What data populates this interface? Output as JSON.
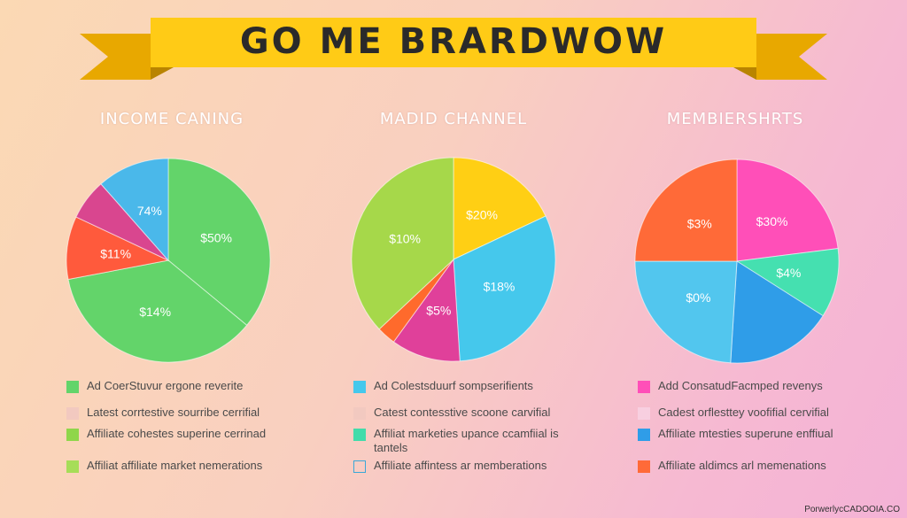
{
  "banner": {
    "title": "GO ME BRARDWOW"
  },
  "chart_data": [
    {
      "type": "pie",
      "title": "INCOME CANING",
      "slices": [
        {
          "label": "$50%",
          "value": 36,
          "color": "#63d46a"
        },
        {
          "label": "$14%",
          "value": 36,
          "color": "#63d46a"
        },
        {
          "label": "$11%",
          "value": 10,
          "color": "#ff5a3c"
        },
        {
          "label": "",
          "value": 6.5,
          "color": "#d9468f"
        },
        {
          "label": "74%",
          "value": 11.5,
          "color": "#4ab8ea"
        }
      ],
      "legend": [
        {
          "text": "Ad CoerStuvur ergone reverite",
          "color": "#63d46a",
          "style": "fill"
        },
        {
          "text": "Latest corrtestive sourribe cerrifial",
          "color": "#f2c9c0",
          "style": "fill"
        },
        {
          "text": "Affiliate cohestes superine cerrinad",
          "color": "#8fd64a",
          "style": "fill"
        },
        {
          "text": "Affiliat affiliate market nemerations",
          "color": "#a6dd58",
          "style": "fill"
        }
      ]
    },
    {
      "type": "pie",
      "title": "MADID CHANNEL",
      "slices": [
        {
          "label": "$20%",
          "value": 18,
          "color": "#ffcf14"
        },
        {
          "label": "$18%",
          "value": 31,
          "color": "#45c8ec"
        },
        {
          "label": "$5%",
          "value": 11,
          "color": "#e0409a"
        },
        {
          "label": "",
          "value": 3,
          "color": "#ff6a2c"
        },
        {
          "label": "$10%",
          "value": 37,
          "color": "#a6d84a"
        }
      ],
      "legend": [
        {
          "text": "Ad Colestsduurf sompserifients",
          "color": "#45c8ec",
          "style": "fill"
        },
        {
          "text": "Catest contesstive scoone carvifial",
          "color": "#f2c9c0",
          "style": "fill"
        },
        {
          "text": "Affiliat marketies upance ccamfiial is tantels",
          "color": "#42dcaa",
          "style": "fill"
        },
        {
          "text": "Affiliate affintess ar memberations",
          "color": "#3aa8d8",
          "style": "outline"
        }
      ]
    },
    {
      "type": "pie",
      "title": "MEMBIERSHRTS",
      "slices": [
        {
          "label": "$30%",
          "value": 23,
          "color": "#ff4fb8"
        },
        {
          "label": "$4%",
          "value": 11,
          "color": "#45e0b0"
        },
        {
          "label": "",
          "value": 17,
          "color": "#2f9de8"
        },
        {
          "label": "$0%",
          "value": 24,
          "color": "#52c6ee"
        },
        {
          "label": "$3%",
          "value": 25,
          "color": "#ff6a38"
        }
      ],
      "legend": [
        {
          "text": "Add ConsatudFacmped revenys",
          "color": "#ff4fb8",
          "style": "fill"
        },
        {
          "text": "Cadest orflesttey voofifial cervifial",
          "color": "#f8cfe0",
          "style": "fill"
        },
        {
          "text": "Affiliate mtesties superune enffiual",
          "color": "#2f9de8",
          "style": "fill"
        },
        {
          "text": "Affiliate aldimcs arl memenations",
          "color": "#ff6a38",
          "style": "fill"
        }
      ]
    }
  ],
  "footer": {
    "text": "PorwerlycCADOOIA.CO"
  }
}
